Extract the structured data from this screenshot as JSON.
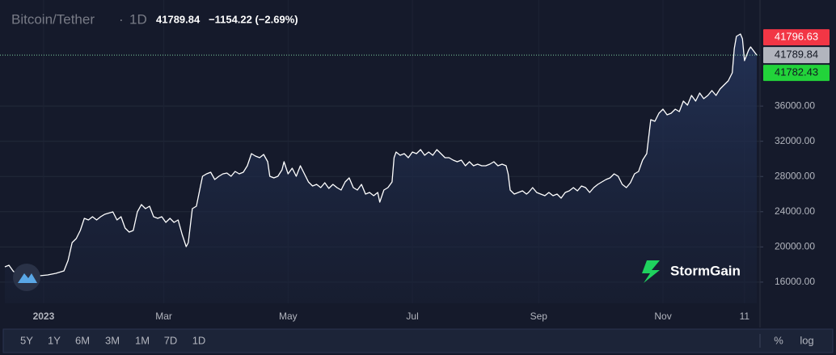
{
  "header": {
    "symbol": "Bitcoin/Tether",
    "interval": "1D",
    "last": "41789.84",
    "change": "−1154.22 (−2.69%)"
  },
  "chart_data": {
    "type": "area",
    "color": "#ffffff",
    "x": [
      -19,
      -17,
      -15,
      -13,
      -10,
      -6,
      -2,
      2,
      6,
      10,
      12,
      14,
      16,
      18,
      20,
      22,
      24,
      26,
      28,
      30,
      34,
      36,
      38,
      40,
      42,
      44,
      46,
      48,
      50,
      52,
      54,
      56,
      58,
      60,
      62,
      64,
      66,
      68,
      70,
      71,
      73,
      75,
      77,
      78,
      80,
      82,
      84,
      86,
      88,
      90,
      92,
      94,
      96,
      98,
      100,
      102,
      104,
      106,
      108,
      110,
      111,
      113,
      115,
      117,
      118,
      120,
      122,
      124,
      126,
      128,
      130,
      132,
      134,
      136,
      138,
      140,
      142,
      144,
      146,
      148,
      150,
      152,
      154,
      156,
      158,
      160,
      162,
      164,
      165,
      167,
      169,
      171,
      172,
      173,
      175,
      177,
      179,
      181,
      183,
      185,
      187,
      189,
      191,
      193,
      195,
      197,
      199,
      201,
      203,
      205,
      207,
      209,
      211,
      213,
      215,
      217,
      219,
      221,
      223,
      225,
      227,
      228,
      229,
      231,
      233,
      235,
      237,
      238,
      240,
      242,
      244,
      246,
      248,
      250,
      252,
      254,
      256,
      258,
      260,
      262,
      264,
      266,
      268,
      270,
      272,
      274,
      276,
      278,
      280,
      282,
      284,
      286,
      288,
      290,
      292,
      294,
      296,
      298,
      300,
      302,
      304,
      306,
      308,
      310,
      312,
      314,
      316,
      318,
      320,
      322,
      324,
      326,
      328,
      330,
      332,
      334,
      336,
      338,
      339,
      340,
      342,
      343,
      344,
      346,
      347,
      350
    ],
    "values": [
      17734,
      17918,
      17275,
      16815,
      16632,
      16632,
      16724,
      16815,
      16999,
      17275,
      18469,
      20490,
      20950,
      21868,
      23246,
      23062,
      23430,
      23062,
      23430,
      23706,
      23981,
      23062,
      23430,
      22144,
      21685,
      21868,
      23981,
      24808,
      24349,
      24624,
      23430,
      23246,
      23430,
      22787,
      23246,
      22787,
      23062,
      21409,
      20031,
      20490,
      24349,
      24624,
      26921,
      28024,
      28299,
      28483,
      27656,
      28024,
      28299,
      28391,
      28024,
      28575,
      28299,
      28483,
      29218,
      30596,
      30321,
      30137,
      30504,
      29677,
      28024,
      27840,
      28024,
      28759,
      29677,
      28299,
      28942,
      28024,
      29218,
      28299,
      27380,
      26921,
      27105,
      26737,
      27289,
      26645,
      27105,
      26737,
      26462,
      27380,
      27840,
      26737,
      26462,
      27105,
      26002,
      26186,
      25819,
      26186,
      25084,
      26462,
      26737,
      27380,
      30137,
      30780,
      30412,
      30596,
      30137,
      30780,
      30596,
      31055,
      30412,
      30780,
      30412,
      31055,
      30596,
      30137,
      30137,
      29861,
      29677,
      29861,
      29218,
      29677,
      29218,
      29402,
      29218,
      29218,
      29402,
      29677,
      29218,
      29402,
      29218,
      28299,
      26462,
      26002,
      26186,
      26370,
      26002,
      26186,
      26737,
      26186,
      26002,
      25819,
      26186,
      25819,
      26002,
      25543,
      26186,
      26370,
      26737,
      26370,
      26921,
      26737,
      26186,
      26737,
      27105,
      27380,
      27656,
      27840,
      28299,
      28024,
      27105,
      26737,
      27289,
      28299,
      28575,
      29861,
      30596,
      34454,
      34271,
      35189,
      35649,
      35005,
      35189,
      35649,
      35373,
      36568,
      36108,
      37211,
      36568,
      37486,
      36843,
      37211,
      37762,
      37211,
      37946,
      38405,
      38864,
      39783,
      42539,
      43917,
      44193,
      43641,
      41161,
      42355,
      42723,
      41790
    ],
    "xlim": [
      -21.4,
      351.6
    ],
    "ylim": [
      13600,
      48050
    ],
    "xticks": [
      {
        "value": 0,
        "label": "2023"
      },
      {
        "value": 59,
        "label": "Mar"
      },
      {
        "value": 120,
        "label": "May"
      },
      {
        "value": 181,
        "label": "Jul"
      },
      {
        "value": 243,
        "label": "Sep"
      },
      {
        "value": 304,
        "label": "Nov"
      },
      {
        "value": 344,
        "label": "11"
      }
    ],
    "yticks": [
      {
        "value": 16000,
        "label": "16000.00"
      },
      {
        "value": 20000,
        "label": "20000.00"
      },
      {
        "value": 24000,
        "label": "24000.00"
      },
      {
        "value": 28000,
        "label": "28000.00"
      },
      {
        "value": 32000,
        "label": "32000.00"
      },
      {
        "value": 36000,
        "label": "36000.00"
      }
    ],
    "grid": true,
    "price_line": 41789.84,
    "price_labels": [
      {
        "value": 41796.63,
        "color": "#f23645"
      },
      {
        "value": 41789.84,
        "color": "#b2b5be"
      },
      {
        "value": 41782.43,
        "color": "#22d33a"
      }
    ]
  },
  "toolbar": {
    "ranges": [
      "5Y",
      "1Y",
      "6M",
      "3M",
      "1M",
      "7D",
      "1D"
    ],
    "percent": "%",
    "log": "log"
  },
  "watermark": "StormGain"
}
